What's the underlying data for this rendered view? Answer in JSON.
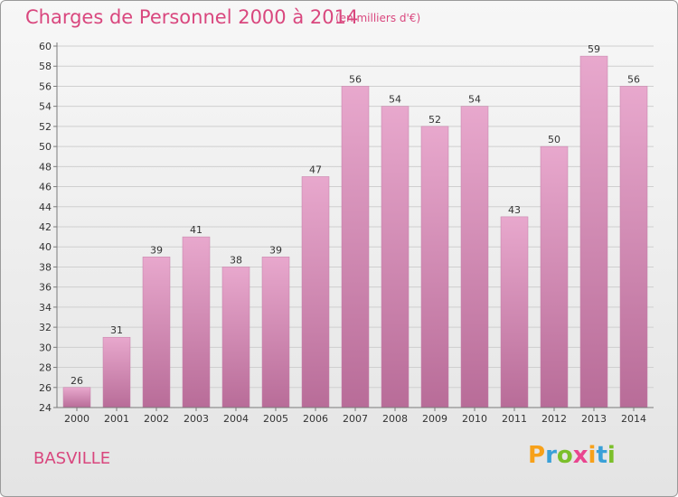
{
  "header": {
    "title": "Charges de Personnel 2000 à 2014",
    "subtitle": "(en milliers d'€)"
  },
  "footer": {
    "commune": "BASVILLE",
    "logo_text": "Proxiti",
    "logo_colors": [
      "#f7a11a",
      "#3aa0d8",
      "#7bbf2a",
      "#e9458f",
      "#f7a11a",
      "#3aa0d8",
      "#7bbf2a"
    ]
  },
  "colors": {
    "accent": "#d9477e",
    "bar_top": "#e8a8cd",
    "bar_bottom": "#b86c98",
    "grid": "#cfcfcf",
    "axis": "#7a7a7a"
  },
  "chart_data": {
    "type": "bar",
    "categories": [
      "2000",
      "2001",
      "2002",
      "2003",
      "2004",
      "2005",
      "2006",
      "2007",
      "2008",
      "2009",
      "2010",
      "2011",
      "2012",
      "2013",
      "2014"
    ],
    "values": [
      26,
      31,
      39,
      41,
      38,
      39,
      47,
      56,
      54,
      52,
      54,
      43,
      50,
      59,
      56
    ],
    "yticks": [
      24,
      26,
      28,
      30,
      32,
      34,
      36,
      38,
      40,
      42,
      44,
      46,
      48,
      50,
      52,
      54,
      56,
      58,
      60
    ],
    "ylim": [
      24,
      60
    ],
    "grid": true,
    "xlabel": "",
    "ylabel": ""
  }
}
